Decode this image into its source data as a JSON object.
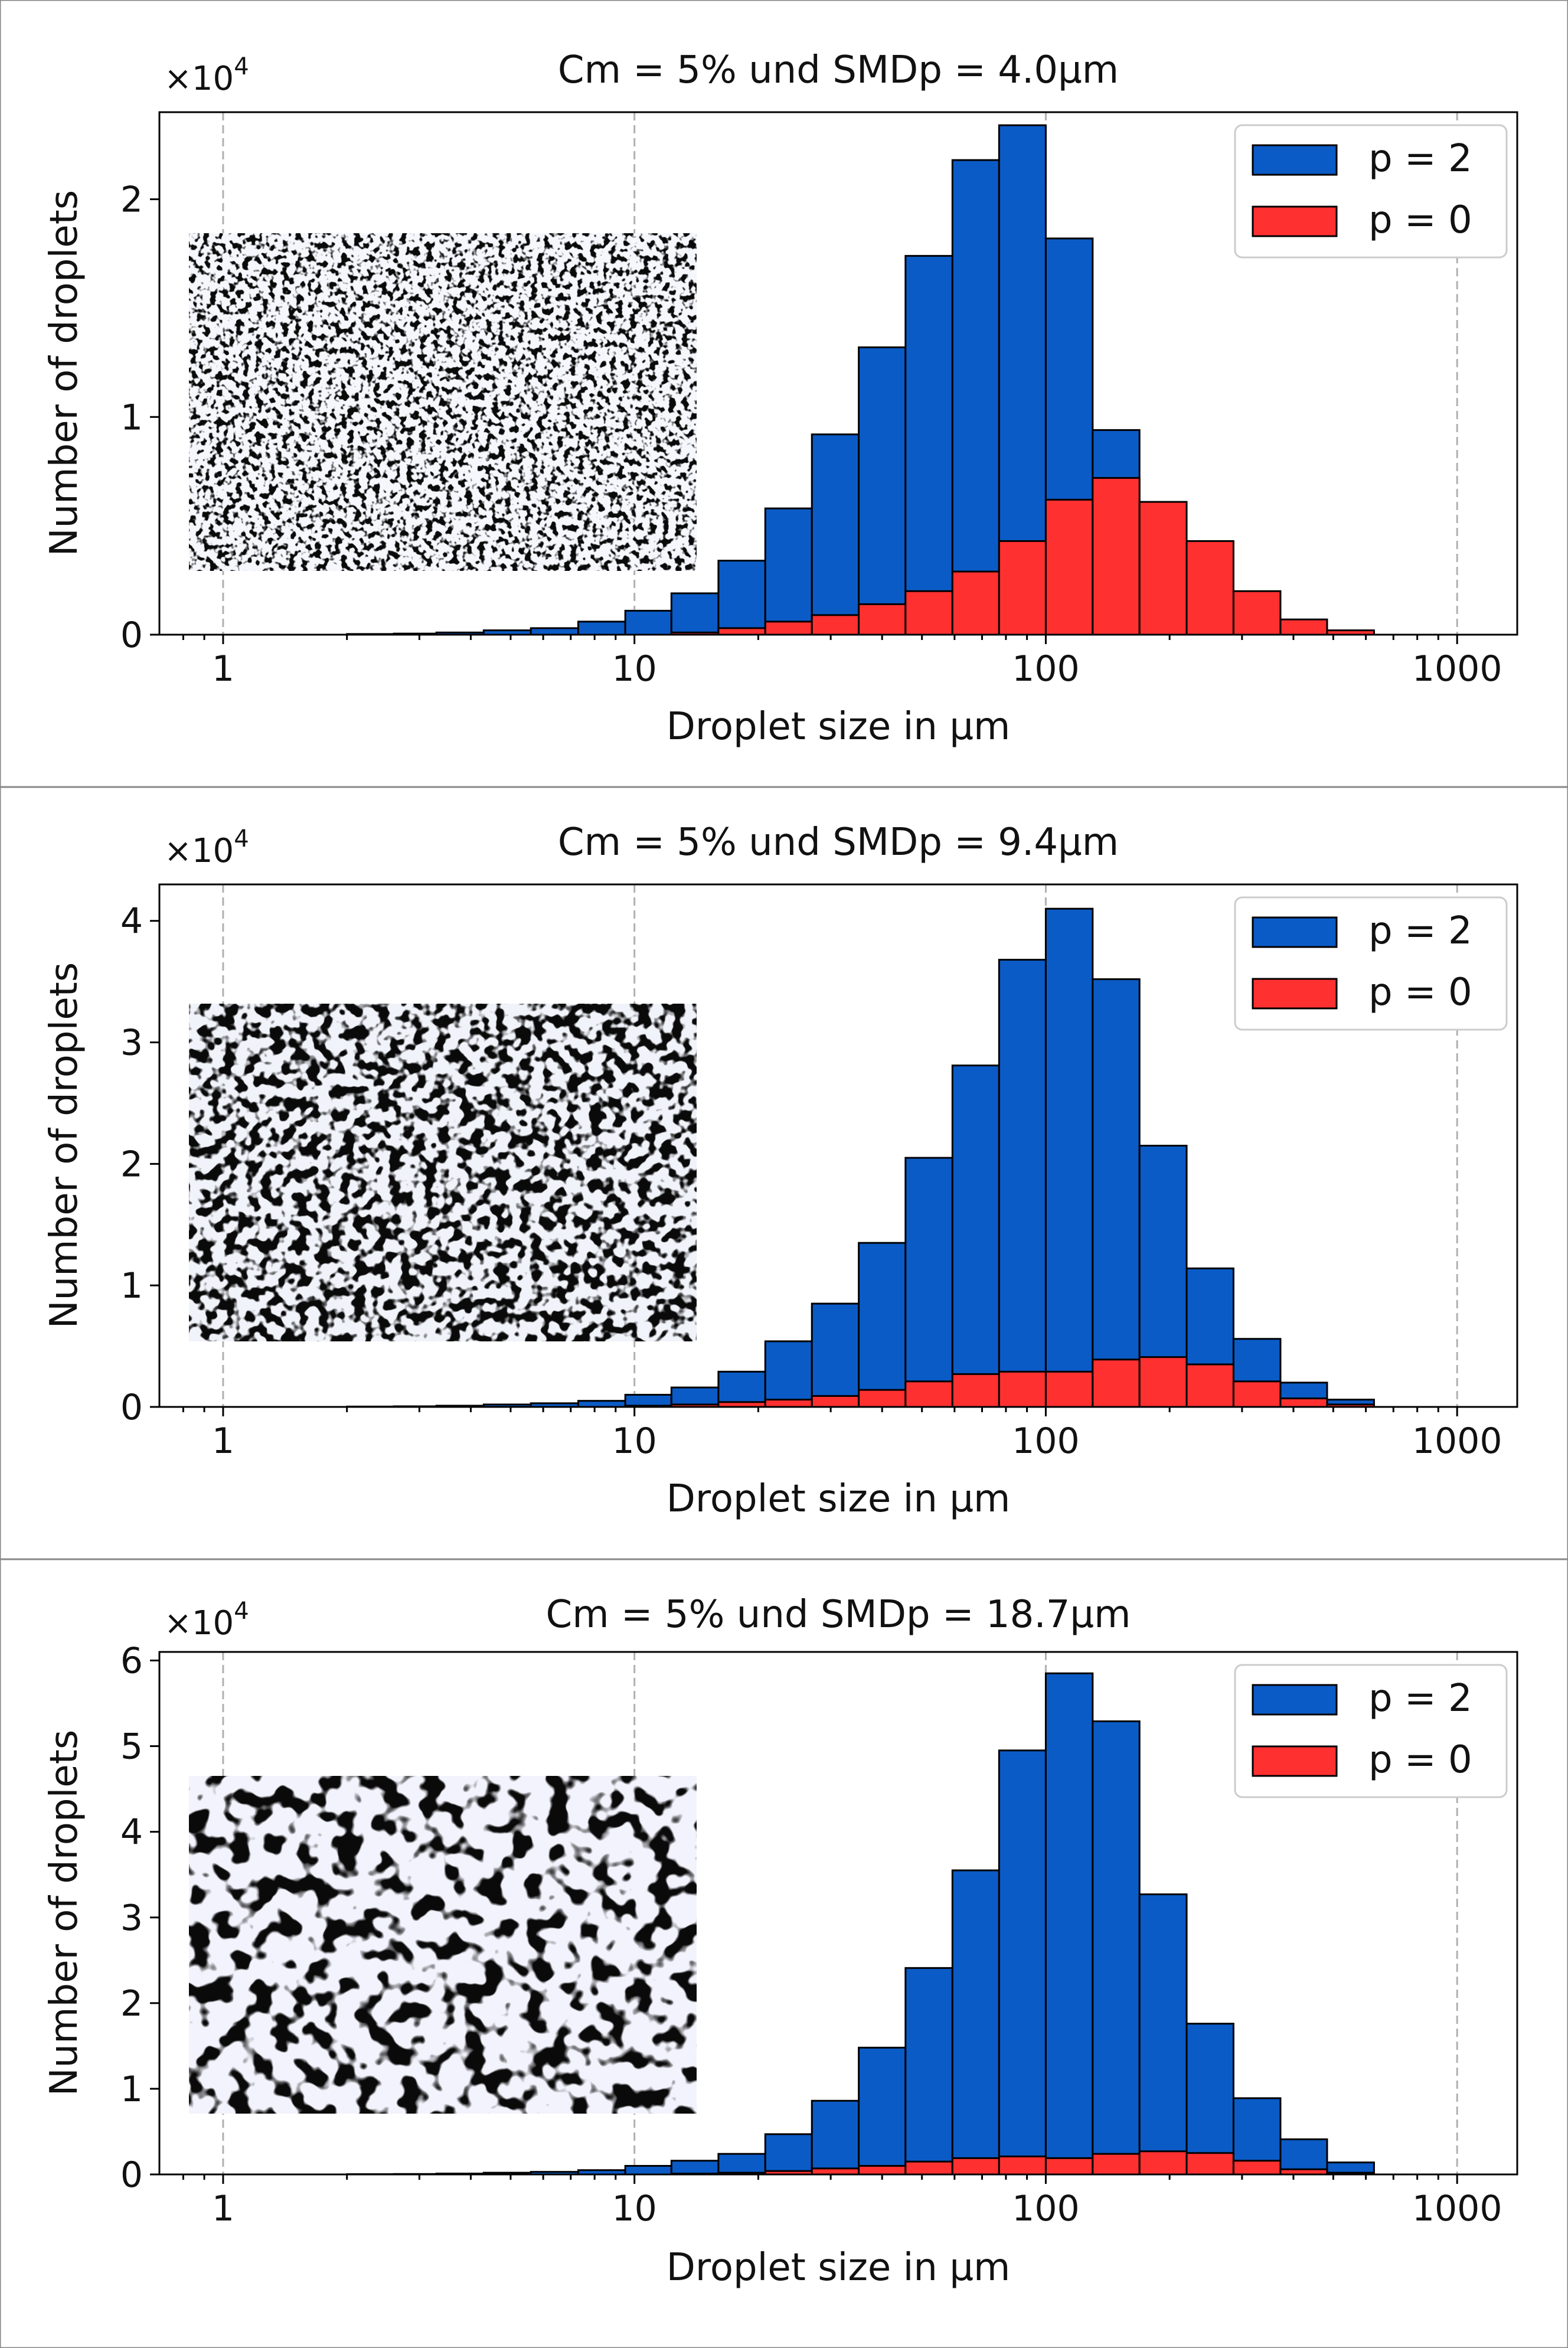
{
  "chart_data": [
    {
      "type": "bar",
      "title": "Cm = 5% und SMDp = 4.0µm",
      "xlabel": "Droplet size in µm",
      "ylabel": "Number of droplets",
      "xscale": "log",
      "xlim": [
        0.7,
        1400
      ],
      "xticks": [
        1,
        10,
        100,
        1000
      ],
      "xtick_labels": [
        "1",
        "10",
        "100",
        "1000"
      ],
      "ylim": [
        0,
        2.4
      ],
      "yticks": [
        0,
        1,
        2
      ],
      "ytick_labels": [
        "0",
        "1",
        "2"
      ],
      "y_multiplier_base": "×10",
      "y_multiplier_exp": "4",
      "grid": "x-major dashed",
      "legend": "top-right",
      "image_inset": "micrograph, fine particles",
      "bin_edges": [
        2.0,
        2.6,
        3.3,
        4.3,
        5.6,
        7.3,
        9.5,
        12.3,
        16.0,
        20.8,
        27.0,
        35.1,
        45.6,
        59.3,
        77.0,
        100.0,
        130.0,
        169.0,
        220.0,
        286.0,
        372.0,
        483.0,
        628.0
      ],
      "series": [
        {
          "name": "p = 2",
          "color": "#0b5bc6",
          "label": "p = 2",
          "values": [
            0.003,
            0.005,
            0.01,
            0.02,
            0.03,
            0.06,
            0.11,
            0.19,
            0.34,
            0.58,
            0.92,
            1.32,
            1.74,
            2.18,
            2.34,
            1.82,
            0.94,
            0.43,
            0.2,
            0.07,
            0.03,
            0.01
          ]
        },
        {
          "name": "p = 0",
          "color": "#ff3030",
          "label": "p = 0",
          "values": [
            0.0,
            0.0,
            0.0,
            0.0,
            0.0,
            0.0,
            0.0,
            0.01,
            0.03,
            0.06,
            0.09,
            0.14,
            0.2,
            0.29,
            0.43,
            0.62,
            0.72,
            0.61,
            0.43,
            0.2,
            0.07,
            0.02
          ]
        }
      ]
    },
    {
      "type": "bar",
      "title": "Cm = 5% und SMDp = 9.4µm",
      "xlabel": "Droplet size in µm",
      "ylabel": "Number of droplets",
      "xscale": "log",
      "xlim": [
        0.7,
        1400
      ],
      "xticks": [
        1,
        10,
        100,
        1000
      ],
      "xtick_labels": [
        "1",
        "10",
        "100",
        "1000"
      ],
      "ylim": [
        0,
        4.3
      ],
      "yticks": [
        0,
        1,
        2,
        3,
        4
      ],
      "ytick_labels": [
        "0",
        "1",
        "2",
        "3",
        "4"
      ],
      "y_multiplier_base": "×10",
      "y_multiplier_exp": "4",
      "grid": "x-major dashed",
      "legend": "top-right",
      "image_inset": "micrograph, medium particles",
      "bin_edges": [
        2.0,
        2.6,
        3.3,
        4.3,
        5.6,
        7.3,
        9.5,
        12.3,
        16.0,
        20.8,
        27.0,
        35.1,
        45.6,
        59.3,
        77.0,
        100.0,
        130.0,
        169.0,
        220.0,
        286.0,
        372.0,
        483.0,
        628.0
      ],
      "series": [
        {
          "name": "p = 2",
          "color": "#0b5bc6",
          "label": "p = 2",
          "values": [
            0.003,
            0.005,
            0.01,
            0.02,
            0.03,
            0.05,
            0.1,
            0.16,
            0.29,
            0.54,
            0.85,
            1.35,
            2.05,
            2.81,
            3.68,
            4.1,
            3.52,
            2.15,
            1.14,
            0.56,
            0.2,
            0.06
          ]
        },
        {
          "name": "p = 0",
          "color": "#ff3030",
          "label": "p = 0",
          "values": [
            0.0,
            0.0,
            0.0,
            0.0,
            0.0,
            0.0,
            0.01,
            0.02,
            0.04,
            0.06,
            0.09,
            0.14,
            0.21,
            0.27,
            0.29,
            0.29,
            0.39,
            0.41,
            0.35,
            0.21,
            0.07,
            0.02
          ]
        }
      ]
    },
    {
      "type": "bar",
      "title": "Cm = 5% und SMDp = 18.7µm",
      "xlabel": "Droplet size in µm",
      "ylabel": "Number of droplets",
      "xscale": "log",
      "xlim": [
        0.7,
        1400
      ],
      "xticks": [
        1,
        10,
        100,
        1000
      ],
      "xtick_labels": [
        "1",
        "10",
        "100",
        "1000"
      ],
      "ylim": [
        0,
        6.1
      ],
      "yticks": [
        0,
        1,
        2,
        3,
        4,
        5,
        6
      ],
      "ytick_labels": [
        "0",
        "1",
        "2",
        "3",
        "4",
        "5",
        "6"
      ],
      "y_multiplier_base": "×10",
      "y_multiplier_exp": "4",
      "grid": "x-major dashed",
      "legend": "top-right",
      "image_inset": "micrograph, coarse particles",
      "bin_edges": [
        2.0,
        2.6,
        3.3,
        4.3,
        5.6,
        7.3,
        9.5,
        12.3,
        16.0,
        20.8,
        27.0,
        35.1,
        45.6,
        59.3,
        77.0,
        100.0,
        130.0,
        169.0,
        220.0,
        286.0,
        372.0,
        483.0,
        628.0
      ],
      "series": [
        {
          "name": "p = 2",
          "color": "#0b5bc6",
          "label": "p = 2",
          "values": [
            0.003,
            0.005,
            0.01,
            0.02,
            0.03,
            0.05,
            0.1,
            0.16,
            0.24,
            0.47,
            0.86,
            1.48,
            2.41,
            3.55,
            4.95,
            5.85,
            5.29,
            3.27,
            1.76,
            0.89,
            0.41,
            0.14
          ]
        },
        {
          "name": "p = 0",
          "color": "#ff3030",
          "label": "p = 0",
          "values": [
            0.0,
            0.0,
            0.0,
            0.0,
            0.0,
            0.0,
            0.0,
            0.01,
            0.02,
            0.04,
            0.07,
            0.1,
            0.15,
            0.19,
            0.21,
            0.19,
            0.24,
            0.27,
            0.25,
            0.16,
            0.06,
            0.02
          ]
        }
      ]
    }
  ]
}
